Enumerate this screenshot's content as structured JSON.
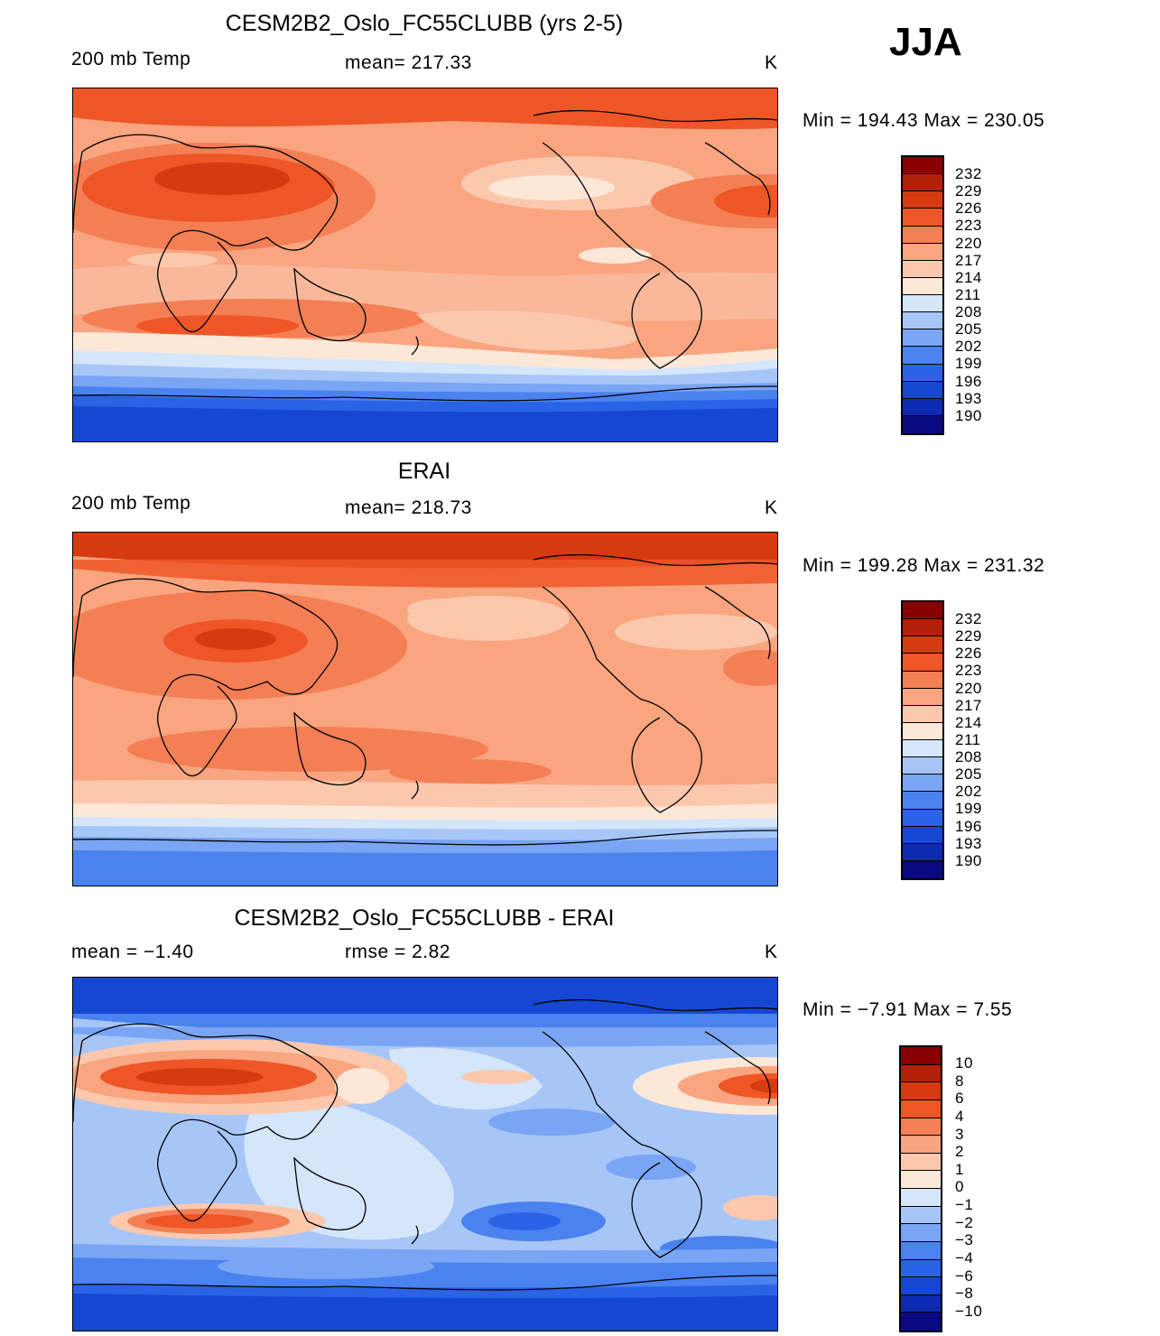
{
  "season": "JJA",
  "palettes": {
    "temp": [
      "#0a0a80",
      "#0d2bb0",
      "#1547d2",
      "#2a63e6",
      "#4a82ef",
      "#7aa5f4",
      "#a7c6f8",
      "#d5e6fb",
      "#fde8d8",
      "#fbc8ae",
      "#f8a580",
      "#f47f55",
      "#ee5627",
      "#d63a10",
      "#b22008",
      "#880000"
    ],
    "diff": [
      "#0a0a80",
      "#0d2bb0",
      "#1547d2",
      "#2a63e6",
      "#4a82ef",
      "#7aa5f4",
      "#a7c6f8",
      "#d5e6fb",
      "#fde8d8",
      "#fbc8ae",
      "#f8a580",
      "#f47f55",
      "#ee5627",
      "#d63a10",
      "#b22008",
      "#880000"
    ]
  },
  "panels": [
    {
      "id": "model",
      "title": "CESM2B2_Oslo_FC55CLUBB (yrs 2-5)",
      "left_label": "200 mb Temp",
      "center_label": "mean=  217.33",
      "units": "K",
      "minmax": "Min  =  194.43  Max  =  230.05",
      "colorbar_ticks": [
        "232",
        "229",
        "226",
        "223",
        "220",
        "217",
        "214",
        "211",
        "208",
        "205",
        "202",
        "199",
        "196",
        "193",
        "190"
      ]
    },
    {
      "id": "obs",
      "title": "ERAI",
      "left_label": "200 mb Temp",
      "center_label": "mean=  218.73",
      "units": "K",
      "minmax": "Min  =  199.28  Max  =  231.32",
      "colorbar_ticks": [
        "232",
        "229",
        "226",
        "223",
        "220",
        "217",
        "214",
        "211",
        "208",
        "205",
        "202",
        "199",
        "196",
        "193",
        "190"
      ]
    },
    {
      "id": "diff",
      "title": "CESM2B2_Oslo_FC55CLUBB - ERAI",
      "left_label": "mean  =    −1.40",
      "center_label": "rmse  =     2.82",
      "units": "K",
      "minmax": "Min  =    −7.91  Max  =      7.55",
      "colorbar_ticks": [
        "10",
        "8",
        "6",
        "4",
        "3",
        "2",
        "1",
        "0",
        "−1",
        "−2",
        "−3",
        "−4",
        "−6",
        "−8",
        "−10"
      ]
    }
  ]
}
